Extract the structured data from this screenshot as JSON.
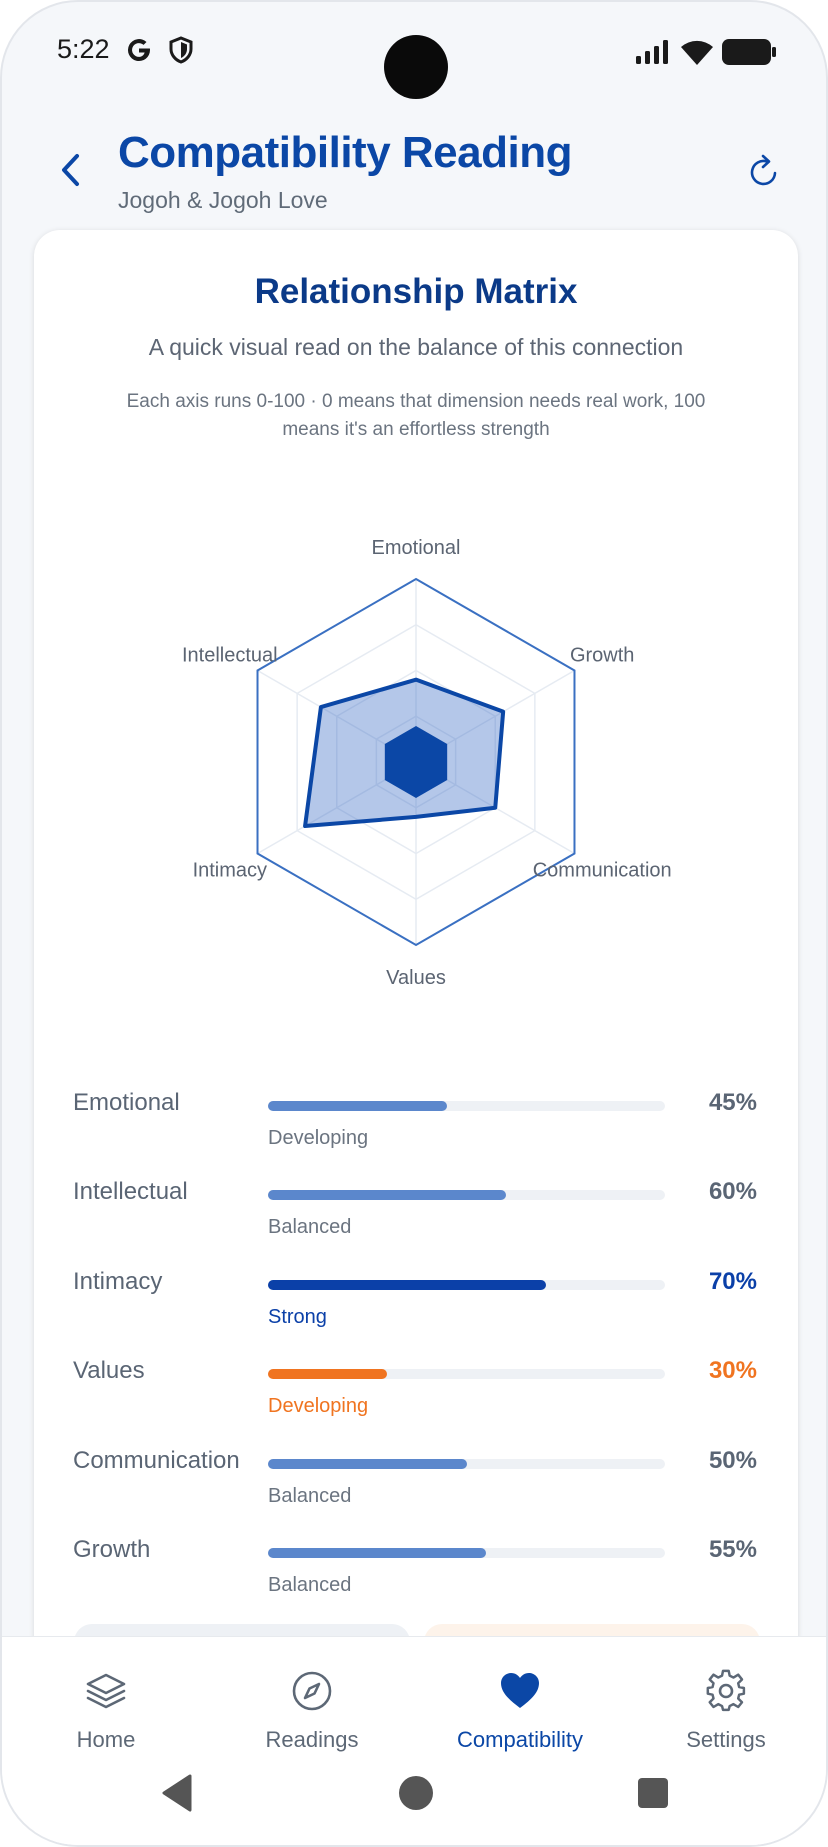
{
  "status_bar": {
    "time": "5:22",
    "icons": [
      "google-g-icon",
      "shield-icon",
      "signal-icon",
      "wifi-icon",
      "battery-icon"
    ]
  },
  "header": {
    "title": "Compatibility Reading",
    "subtitle": "Jogoh & Jogoh Love",
    "back_icon": "chevron-left-icon",
    "refresh_icon": "refresh-icon"
  },
  "matrix": {
    "title": "Relationship Matrix",
    "subtitle": "A quick visual read on the balance of this connection",
    "note": "Each axis runs 0-100 · 0 means that dimension needs real work, 100 means it's an effortless strength"
  },
  "chart_data": {
    "type": "radar",
    "axes": [
      "Emotional",
      "Growth",
      "Communication",
      "Values",
      "Intimacy",
      "Intellectual"
    ],
    "values": [
      45,
      55,
      50,
      30,
      70,
      60
    ],
    "range": [
      0,
      100
    ],
    "fill_color": "#3b6cc4",
    "stroke_color": "#0b47a6"
  },
  "scores": [
    {
      "label": "Emotional",
      "value": 45,
      "percent": "45%",
      "status": "Developing",
      "tone": "muted"
    },
    {
      "label": "Intellectual",
      "value": 60,
      "percent": "60%",
      "status": "Balanced",
      "tone": "muted"
    },
    {
      "label": "Intimacy",
      "value": 70,
      "percent": "70%",
      "status": "Strong",
      "tone": "strong"
    },
    {
      "label": "Values",
      "value": 30,
      "percent": "30%",
      "status": "Developing",
      "tone": "warn"
    },
    {
      "label": "Communication",
      "value": 50,
      "percent": "50%",
      "status": "Balanced",
      "tone": "muted"
    },
    {
      "label": "Growth",
      "value": 55,
      "percent": "55%",
      "status": "Balanced",
      "tone": "muted"
    }
  ],
  "colors": {
    "primary": "#0b47a6",
    "bar_muted": "#5b87cc",
    "bar_strong": "#0b40a8",
    "bar_warn": "#f07420",
    "text_muted": "#5a6574"
  },
  "nav": {
    "items": [
      {
        "label": "Home",
        "icon": "layers-icon",
        "active": false
      },
      {
        "label": "Readings",
        "icon": "compass-icon",
        "active": false
      },
      {
        "label": "Compatibility",
        "icon": "heart-icon",
        "active": true
      },
      {
        "label": "Settings",
        "icon": "gear-icon",
        "active": false
      }
    ]
  }
}
